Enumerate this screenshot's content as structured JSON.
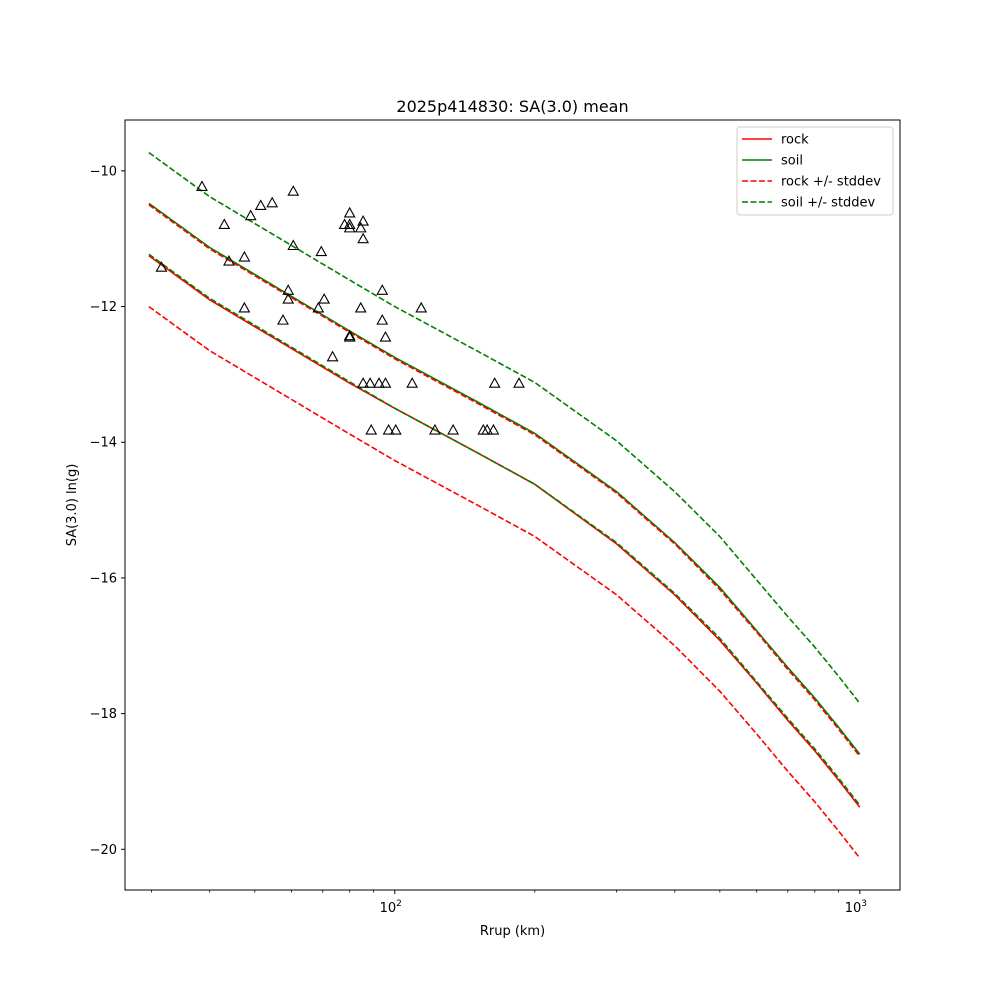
{
  "chart_data": {
    "type": "line",
    "title": "2025p414830: SA(3.0) mean",
    "xlabel": "Rrup (km)",
    "ylabel": "SA(3.0) ln(g)",
    "xscale": "log",
    "xlim": [
      26.3,
      1220
    ],
    "ylim": [
      -20.6,
      -9.25
    ],
    "xticks": [
      {
        "value": 100,
        "base": "10",
        "exp": "2"
      },
      {
        "value": 1000,
        "base": "10",
        "exp": "3"
      }
    ],
    "yticks": [
      -10,
      -12,
      -14,
      -16,
      -18,
      -20
    ],
    "legend_position": "top-right",
    "x": [
      29.6,
      40,
      60,
      80,
      100,
      150,
      200,
      300,
      400,
      500,
      600,
      700,
      800,
      900,
      1000
    ],
    "series": [
      {
        "name": "rock",
        "color": "#ff0000",
        "style": "solid",
        "values": [
          -11.25,
          -11.9,
          -12.62,
          -13.13,
          -13.5,
          -14.15,
          -14.62,
          -15.5,
          -16.25,
          -16.92,
          -17.55,
          -18.1,
          -18.55,
          -18.98,
          -19.38
        ]
      },
      {
        "name": "soil",
        "color": "#008000",
        "style": "solid",
        "values": [
          -10.48,
          -11.13,
          -11.85,
          -12.36,
          -12.75,
          -13.4,
          -13.87,
          -14.73,
          -15.48,
          -16.14,
          -16.78,
          -17.32,
          -17.77,
          -18.2,
          -18.6
        ]
      },
      {
        "name": "rock +/- stddev",
        "color": "#ff0000",
        "style": "dashed",
        "values": [
          -10.5,
          -11.15,
          -11.87,
          -12.38,
          -12.77,
          -13.42,
          -13.89,
          -14.75,
          -15.5,
          -16.17,
          -16.8,
          -17.35,
          -17.8,
          -18.23,
          -18.63
        ]
      },
      {
        "name": "",
        "color": "#ff0000",
        "style": "dashed",
        "values": [
          -12.0,
          -12.65,
          -13.37,
          -13.88,
          -14.27,
          -14.92,
          -15.39,
          -16.25,
          -17.0,
          -17.67,
          -18.3,
          -18.85,
          -19.3,
          -19.73,
          -20.13
        ]
      },
      {
        "name": "soil +/- stddev",
        "color": "#008000",
        "style": "dashed",
        "values": [
          -9.73,
          -10.38,
          -11.1,
          -11.61,
          -12.0,
          -12.65,
          -13.12,
          -13.98,
          -14.73,
          -15.39,
          -16.03,
          -16.57,
          -17.02,
          -17.45,
          -17.85
        ]
      },
      {
        "name": "",
        "color": "#008000",
        "style": "dashed",
        "values": [
          -11.23,
          -11.88,
          -12.6,
          -13.11,
          -13.5,
          -14.15,
          -14.62,
          -15.48,
          -16.23,
          -16.89,
          -17.53,
          -18.07,
          -18.52,
          -18.95,
          -19.35
        ]
      }
    ],
    "legend": [
      {
        "label": "rock",
        "color": "#ff0000",
        "style": "solid"
      },
      {
        "label": "soil",
        "color": "#008000",
        "style": "solid"
      },
      {
        "label": "rock +/- stddev",
        "color": "#ff0000",
        "style": "dashed"
      },
      {
        "label": "soil +/- stddev",
        "color": "#008000",
        "style": "dashed"
      }
    ],
    "observations": {
      "marker": "triangle",
      "points": [
        [
          31.5,
          -11.42
        ],
        [
          38.5,
          -10.23
        ],
        [
          43.0,
          -10.79
        ],
        [
          44.0,
          -11.33
        ],
        [
          47.5,
          -11.27
        ],
        [
          47.5,
          -12.02
        ],
        [
          49.0,
          -10.66
        ],
        [
          51.5,
          -10.51
        ],
        [
          54.5,
          -10.47
        ],
        [
          57.5,
          -12.2
        ],
        [
          59.0,
          -11.76
        ],
        [
          59.0,
          -11.89
        ],
        [
          60.5,
          -11.1
        ],
        [
          60.5,
          -10.3
        ],
        [
          68.5,
          -12.02
        ],
        [
          69.5,
          -11.19
        ],
        [
          70.5,
          -11.89
        ],
        [
          73.5,
          -12.74
        ],
        [
          78.0,
          -10.79
        ],
        [
          80.0,
          -10.79
        ],
        [
          80.0,
          -10.84
        ],
        [
          80.0,
          -10.62
        ],
        [
          80.0,
          -12.43
        ],
        [
          80.0,
          -12.45
        ],
        [
          84.5,
          -10.84
        ],
        [
          84.5,
          -12.02
        ],
        [
          85.5,
          -10.74
        ],
        [
          85.5,
          -11.0
        ],
        [
          85.5,
          -13.13
        ],
        [
          88.5,
          -13.13
        ],
        [
          89.0,
          -13.82
        ],
        [
          92.5,
          -13.13
        ],
        [
          94.0,
          -11.76
        ],
        [
          94.0,
          -12.2
        ],
        [
          95.5,
          -12.45
        ],
        [
          95.5,
          -13.13
        ],
        [
          97.0,
          -13.82
        ],
        [
          100.5,
          -13.82
        ],
        [
          109.0,
          -13.13
        ],
        [
          114.0,
          -12.02
        ],
        [
          122.0,
          -13.82
        ],
        [
          133.5,
          -13.82
        ],
        [
          155.0,
          -13.82
        ],
        [
          158.0,
          -13.82
        ],
        [
          163.0,
          -13.82
        ],
        [
          164.0,
          -13.13
        ],
        [
          185.0,
          -13.13
        ]
      ]
    }
  }
}
